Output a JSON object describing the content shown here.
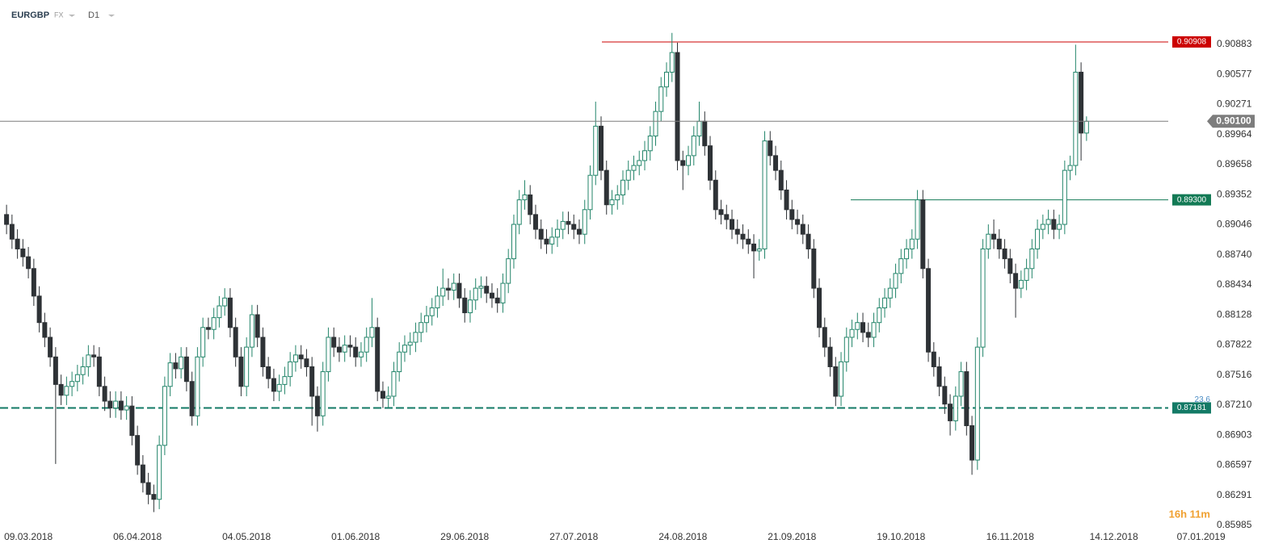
{
  "header": {
    "symbol": "EURGBP",
    "market": "FX",
    "timeframe": "D1"
  },
  "chart_data": {
    "type": "candlestick",
    "open": [
      0.8915,
      0.8905,
      0.889,
      0.888,
      0.8872,
      0.886,
      0.8832,
      0.8805,
      0.879,
      0.877,
      0.8742,
      0.8731,
      0.874,
      0.8745,
      0.8752,
      0.876,
      0.8772,
      0.877,
      0.874,
      0.8725,
      0.8718,
      0.8725,
      0.8716,
      0.872,
      0.869,
      0.866,
      0.8642,
      0.863,
      0.8625,
      0.868,
      0.874,
      0.8764,
      0.8758,
      0.877,
      0.8745,
      0.871,
      0.877,
      0.88,
      0.8798,
      0.881,
      0.8822,
      0.883,
      0.88,
      0.877,
      0.874,
      0.878,
      0.8813,
      0.879,
      0.876,
      0.8748,
      0.8735,
      0.8742,
      0.875,
      0.8765,
      0.8772,
      0.8768,
      0.876,
      0.873,
      0.871,
      0.8755,
      0.879,
      0.878,
      0.8775,
      0.8782,
      0.878,
      0.877,
      0.8775,
      0.879,
      0.88,
      0.8735,
      0.8728,
      0.873,
      0.8755,
      0.8775,
      0.8782,
      0.8785,
      0.8795,
      0.8805,
      0.8812,
      0.882,
      0.8832,
      0.884,
      0.8838,
      0.8845,
      0.883,
      0.8815,
      0.8828,
      0.884,
      0.8842,
      0.8835,
      0.883,
      0.8825,
      0.8845,
      0.887,
      0.8905,
      0.893,
      0.8935,
      0.8915,
      0.89,
      0.889,
      0.8885,
      0.8892,
      0.89,
      0.8908,
      0.8905,
      0.89,
      0.8895,
      0.892,
      0.8955,
      0.9005,
      0.896,
      0.8925,
      0.893,
      0.8935,
      0.895,
      0.896,
      0.8965,
      0.897,
      0.898,
      0.8995,
      0.902,
      0.9045,
      0.906,
      0.908,
      0.897,
      0.8965,
      0.8975,
      0.8995,
      0.901,
      0.8985,
      0.895,
      0.892,
      0.8915,
      0.891,
      0.89,
      0.8895,
      0.889,
      0.8885,
      0.8878,
      0.888,
      0.899,
      0.8975,
      0.896,
      0.894,
      0.892,
      0.891,
      0.8905,
      0.8895,
      0.888,
      0.884,
      0.88,
      0.878,
      0.876,
      0.873,
      0.8765,
      0.879,
      0.8798,
      0.8805,
      0.8795,
      0.879,
      0.8805,
      0.882,
      0.883,
      0.884,
      0.8855,
      0.887,
      0.888,
      0.889,
      0.893,
      0.886,
      0.8775,
      0.876,
      0.874,
      0.8722,
      0.8705,
      0.873,
      0.8755,
      0.87,
      0.8665,
      0.878,
      0.888,
      0.8895,
      0.889,
      0.888,
      0.887,
      0.8855,
      0.884,
      0.8848,
      0.886,
      0.888,
      0.89,
      0.8905,
      0.891,
      0.89,
      0.8905,
      0.896,
      0.8965,
      0.906,
      0.8998
    ],
    "high": [
      0.8925,
      0.8915,
      0.89,
      0.889,
      0.8882,
      0.887,
      0.8842,
      0.8815,
      0.88,
      0.878,
      0.8752,
      0.875,
      0.8755,
      0.8762,
      0.877,
      0.8782,
      0.8782,
      0.878,
      0.875,
      0.8735,
      0.8735,
      0.8735,
      0.873,
      0.873,
      0.87,
      0.867,
      0.8652,
      0.864,
      0.869,
      0.875,
      0.8774,
      0.8774,
      0.878,
      0.878,
      0.8755,
      0.878,
      0.881,
      0.881,
      0.882,
      0.8832,
      0.884,
      0.884,
      0.881,
      0.878,
      0.879,
      0.8823,
      0.8823,
      0.88,
      0.877,
      0.8758,
      0.8752,
      0.876,
      0.8775,
      0.8782,
      0.8782,
      0.8778,
      0.877,
      0.874,
      0.8765,
      0.88,
      0.88,
      0.879,
      0.8792,
      0.8792,
      0.879,
      0.8785,
      0.88,
      0.883,
      0.881,
      0.8745,
      0.874,
      0.8765,
      0.8785,
      0.8792,
      0.8795,
      0.8805,
      0.8815,
      0.8822,
      0.883,
      0.8842,
      0.886,
      0.885,
      0.8855,
      0.8855,
      0.884,
      0.8838,
      0.885,
      0.8852,
      0.8852,
      0.8845,
      0.884,
      0.8855,
      0.888,
      0.8915,
      0.894,
      0.895,
      0.8945,
      0.8925,
      0.891,
      0.89,
      0.8902,
      0.891,
      0.8918,
      0.8918,
      0.8915,
      0.891,
      0.893,
      0.8965,
      0.903,
      0.9015,
      0.897,
      0.894,
      0.8945,
      0.896,
      0.897,
      0.8975,
      0.898,
      0.899,
      0.9005,
      0.903,
      0.9055,
      0.907,
      0.91,
      0.909,
      0.898,
      0.8985,
      0.9005,
      0.903,
      0.902,
      0.8995,
      0.896,
      0.893,
      0.8925,
      0.892,
      0.891,
      0.8905,
      0.89,
      0.8895,
      0.889,
      0.9,
      0.9,
      0.8985,
      0.897,
      0.895,
      0.893,
      0.892,
      0.8915,
      0.8905,
      0.889,
      0.885,
      0.881,
      0.879,
      0.877,
      0.8775,
      0.88,
      0.8808,
      0.8815,
      0.8815,
      0.8805,
      0.8815,
      0.883,
      0.884,
      0.885,
      0.8865,
      0.888,
      0.889,
      0.89,
      0.894,
      0.894,
      0.887,
      0.8785,
      0.877,
      0.875,
      0.8732,
      0.874,
      0.8765,
      0.8765,
      0.871,
      0.879,
      0.889,
      0.8905,
      0.891,
      0.89,
      0.889,
      0.888,
      0.8865,
      0.8858,
      0.887,
      0.889,
      0.891,
      0.8915,
      0.892,
      0.892,
      0.8915,
      0.897,
      0.8975,
      0.9088,
      0.907,
      0.9015
    ],
    "low": [
      0.8895,
      0.888,
      0.887,
      0.8862,
      0.885,
      0.8822,
      0.8795,
      0.878,
      0.876,
      0.8661,
      0.8721,
      0.8721,
      0.873,
      0.8735,
      0.8742,
      0.875,
      0.876,
      0.873,
      0.8715,
      0.8708,
      0.8708,
      0.8706,
      0.8706,
      0.868,
      0.865,
      0.8632,
      0.862,
      0.8612,
      0.8615,
      0.867,
      0.873,
      0.8748,
      0.8748,
      0.8735,
      0.87,
      0.87,
      0.876,
      0.8788,
      0.8788,
      0.88,
      0.8812,
      0.879,
      0.876,
      0.873,
      0.873,
      0.877,
      0.878,
      0.875,
      0.8738,
      0.8725,
      0.8725,
      0.8732,
      0.874,
      0.8755,
      0.8758,
      0.875,
      0.87,
      0.8694,
      0.87,
      0.8745,
      0.877,
      0.8765,
      0.8765,
      0.877,
      0.876,
      0.876,
      0.8765,
      0.878,
      0.8725,
      0.8718,
      0.8718,
      0.872,
      0.8745,
      0.8765,
      0.8772,
      0.8775,
      0.8785,
      0.8795,
      0.8802,
      0.881,
      0.8822,
      0.8828,
      0.8828,
      0.882,
      0.8805,
      0.8805,
      0.8818,
      0.883,
      0.8825,
      0.882,
      0.8815,
      0.8815,
      0.8835,
      0.886,
      0.8895,
      0.892,
      0.8905,
      0.889,
      0.888,
      0.8875,
      0.8875,
      0.8882,
      0.889,
      0.8895,
      0.889,
      0.8885,
      0.8885,
      0.891,
      0.8945,
      0.895,
      0.8915,
      0.8915,
      0.892,
      0.8925,
      0.894,
      0.895,
      0.8955,
      0.896,
      0.897,
      0.8985,
      0.901,
      0.9035,
      0.905,
      0.896,
      0.894,
      0.8955,
      0.8965,
      0.8985,
      0.8975,
      0.894,
      0.891,
      0.8905,
      0.89,
      0.889,
      0.8885,
      0.888,
      0.8875,
      0.885,
      0.8868,
      0.887,
      0.8965,
      0.895,
      0.893,
      0.891,
      0.89,
      0.8895,
      0.8885,
      0.887,
      0.883,
      0.879,
      0.877,
      0.875,
      0.872,
      0.872,
      0.8755,
      0.878,
      0.8788,
      0.8785,
      0.878,
      0.878,
      0.8795,
      0.881,
      0.882,
      0.883,
      0.8845,
      0.886,
      0.887,
      0.888,
      0.885,
      0.8765,
      0.875,
      0.873,
      0.8712,
      0.869,
      0.8695,
      0.872,
      0.869,
      0.865,
      0.8655,
      0.877,
      0.887,
      0.888,
      0.887,
      0.886,
      0.8845,
      0.881,
      0.883,
      0.8838,
      0.885,
      0.887,
      0.889,
      0.8895,
      0.889,
      0.889,
      0.8895,
      0.895,
      0.8955,
      0.897,
      0.899
    ],
    "close": [
      0.8905,
      0.889,
      0.888,
      0.8872,
      0.886,
      0.8832,
      0.8805,
      0.879,
      0.877,
      0.8742,
      0.8731,
      0.874,
      0.8745,
      0.8752,
      0.876,
      0.8772,
      0.877,
      0.874,
      0.8725,
      0.8718,
      0.8725,
      0.8716,
      0.872,
      0.869,
      0.866,
      0.8642,
      0.863,
      0.8625,
      0.868,
      0.874,
      0.8764,
      0.8758,
      0.877,
      0.8745,
      0.871,
      0.877,
      0.88,
      0.8798,
      0.881,
      0.8822,
      0.883,
      0.88,
      0.877,
      0.874,
      0.878,
      0.8813,
      0.879,
      0.876,
      0.8748,
      0.8735,
      0.8742,
      0.875,
      0.8765,
      0.8772,
      0.8768,
      0.876,
      0.873,
      0.871,
      0.8755,
      0.879,
      0.878,
      0.8775,
      0.8782,
      0.878,
      0.877,
      0.8775,
      0.879,
      0.88,
      0.8735,
      0.8728,
      0.873,
      0.8755,
      0.8775,
      0.8782,
      0.8785,
      0.8795,
      0.8805,
      0.8812,
      0.882,
      0.8832,
      0.884,
      0.8838,
      0.8845,
      0.883,
      0.8815,
      0.8828,
      0.884,
      0.8842,
      0.8835,
      0.883,
      0.8825,
      0.8845,
      0.887,
      0.8905,
      0.893,
      0.8935,
      0.8915,
      0.89,
      0.889,
      0.8885,
      0.8892,
      0.89,
      0.8908,
      0.8905,
      0.89,
      0.8895,
      0.892,
      0.8955,
      0.9005,
      0.896,
      0.8925,
      0.893,
      0.8935,
      0.895,
      0.896,
      0.8965,
      0.897,
      0.898,
      0.8995,
      0.902,
      0.9045,
      0.906,
      0.908,
      0.897,
      0.8965,
      0.8975,
      0.8995,
      0.901,
      0.8985,
      0.895,
      0.892,
      0.8915,
      0.891,
      0.89,
      0.8895,
      0.889,
      0.8885,
      0.8878,
      0.888,
      0.899,
      0.8975,
      0.896,
      0.894,
      0.892,
      0.891,
      0.8905,
      0.8895,
      0.888,
      0.884,
      0.88,
      0.878,
      0.876,
      0.873,
      0.8765,
      0.879,
      0.8798,
      0.8805,
      0.8795,
      0.879,
      0.8805,
      0.882,
      0.883,
      0.884,
      0.8855,
      0.887,
      0.888,
      0.889,
      0.893,
      0.886,
      0.8775,
      0.876,
      0.874,
      0.8722,
      0.8705,
      0.873,
      0.8755,
      0.87,
      0.8665,
      0.878,
      0.888,
      0.8895,
      0.889,
      0.888,
      0.887,
      0.8855,
      0.884,
      0.8848,
      0.886,
      0.888,
      0.89,
      0.8905,
      0.891,
      0.89,
      0.8905,
      0.896,
      0.8965,
      0.906,
      0.8998,
      0.901
    ],
    "up_color": "#23856a",
    "down_color": "#2e3236",
    "ylim": [
      0.85952,
      0.91335
    ],
    "yticks": [
      0.90883,
      0.90577,
      0.90271,
      0.89964,
      0.89658,
      0.89352,
      0.89046,
      {
        "value": 0.8874,
        "label": "0.88740"
      },
      0.88434,
      0.88128,
      0.87822,
      0.87516,
      {
        "value": 0.8721,
        "label": "0.87210"
      },
      0.86903,
      0.86597,
      0.86291,
      0.85985
    ],
    "xlim": [
      -1.2,
      219.5
    ],
    "xticks": [
      {
        "value": 4,
        "label": "09.03.2018"
      },
      {
        "value": 24,
        "label": "06.04.2018"
      },
      {
        "value": 44,
        "label": "04.05.2018"
      },
      {
        "value": 64,
        "label": "01.06.2018"
      },
      {
        "value": 84,
        "label": "29.06.2018"
      },
      {
        "value": 104,
        "label": "27.07.2018"
      },
      {
        "value": 124,
        "label": "24.08.2018"
      },
      {
        "value": 144,
        "label": "21.09.2018"
      },
      {
        "value": 164,
        "label": "19.10.2018"
      },
      {
        "value": 184,
        "label": "16.11.2018"
      },
      {
        "value": 203,
        "label": "14.12.2018"
      },
      {
        "value": 219,
        "label": "07.01.2019"
      }
    ],
    "levels": [
      {
        "value": 0.90908,
        "color": "#cc0000"
      },
      {
        "value": {
          "value": 0.893,
          "label": "0.89300"
        },
        "color": "#137a55"
      },
      {
        "value": 0.87181,
        "color": "#137a66",
        "annotation": "23.6"
      }
    ],
    "last_price": {
      "value": 0.901,
      "label": "0.90100",
      "color": "#7d7d7d"
    },
    "countdown": "16h 11m"
  }
}
